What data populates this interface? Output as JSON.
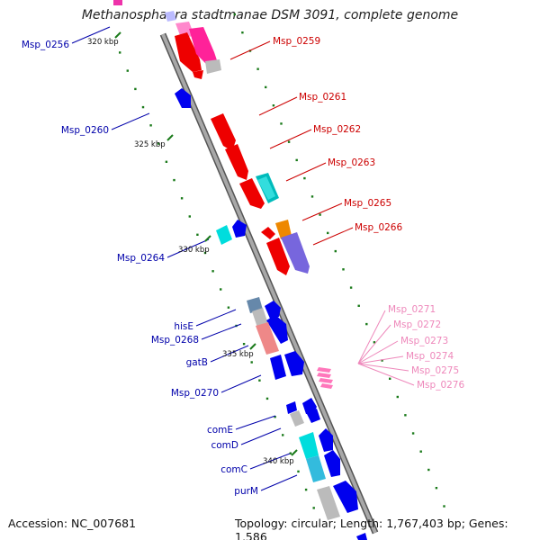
{
  "title": "Methanosphaera stadtmanae DSM 3091, complete genome",
  "footer": {
    "accession": "Accession: NC_007681",
    "topology": "Topology: circular; Length: 1,767,403 bp; Genes: 1,586"
  },
  "colors": {
    "backbone": "#808080",
    "forward_label": "#cc0000",
    "reverse_label": "#0000aa",
    "pink_label": "#ee88bb",
    "tick": "#1a7a1a"
  },
  "kbp_marks": [
    "320 kbp",
    "325 kbp",
    "330 kbp",
    "335 kbp",
    "340 kbp"
  ],
  "right_labels": [
    "Msp_0259",
    "Msp_0261",
    "Msp_0262",
    "Msp_0263",
    "Msp_0265",
    "Msp_0266"
  ],
  "left_labels": [
    "Msp_0256",
    "Msp_0260",
    "Msp_0264",
    "hisE",
    "Msp_0268",
    "gatB",
    "Msp_0270",
    "comE",
    "comD",
    "comC",
    "purM"
  ],
  "pink_labels": [
    "Msp_0271",
    "Msp_0272",
    "Msp_0273",
    "Msp_0274",
    "Msp_0275",
    "Msp_0276"
  ]
}
